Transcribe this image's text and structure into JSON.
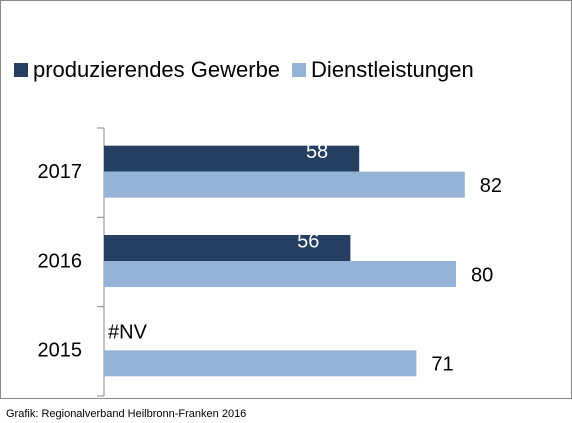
{
  "chart_data": {
    "type": "hbar",
    "categories": [
      "2017",
      "2016",
      "2015"
    ],
    "series": [
      {
        "name": "produzierendes Gewerbe",
        "color": "#243f60",
        "values": [
          58,
          56,
          null
        ],
        "value_labels": [
          "58",
          "56",
          "#NV"
        ]
      },
      {
        "name": "Dienstleistungen",
        "color": "#95b3d7",
        "values": [
          82,
          80,
          71
        ]
      }
    ],
    "xlim": [
      0,
      100
    ],
    "legend": "top",
    "source": "Grafik: Regionalverband Heilbronn-Franken 2016"
  }
}
